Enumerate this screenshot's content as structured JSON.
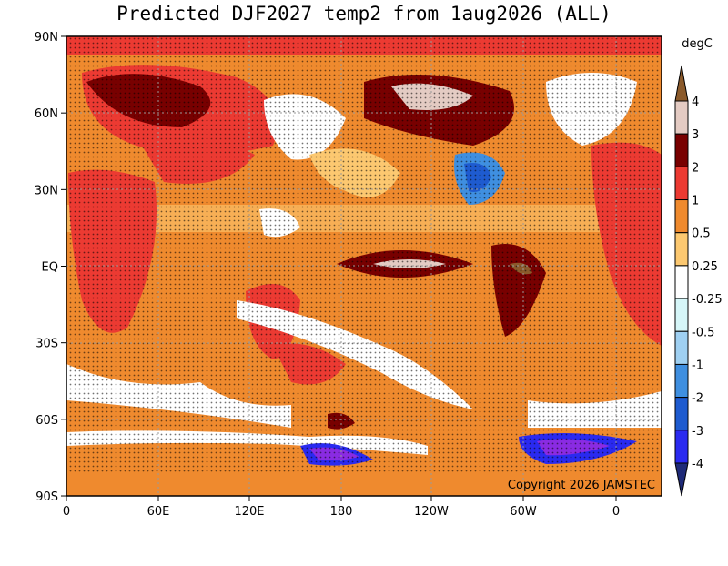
{
  "title": "Predicted DJF2027 temp2 from 1aug2026 (ALL)",
  "map": {
    "lat_labels": [
      "90N",
      "60N",
      "30N",
      "EQ",
      "30S",
      "60S",
      "90S"
    ],
    "lon_labels": [
      "0",
      "60E",
      "120E",
      "180",
      "120W",
      "60W",
      "0"
    ],
    "copyright": "Copyright 2026 JAMSTEC"
  },
  "colorbar": {
    "unit": "degC",
    "labels": [
      "4",
      "3",
      "2",
      "1",
      "0.5",
      "0.25",
      "-0.25",
      "-0.5",
      "-1",
      "-2",
      "-3",
      "-4"
    ],
    "colors": [
      "#8b5a2b",
      "#e4cbc3",
      "#780000",
      "#ec3a32",
      "#ef8a2e",
      "#fcc870",
      "#ffffff",
      "#d6f6f8",
      "#9fd0f2",
      "#3f8fe0",
      "#1e5bd0",
      "#2a2af0",
      "#8a2be2",
      "#1e2a78"
    ]
  }
}
